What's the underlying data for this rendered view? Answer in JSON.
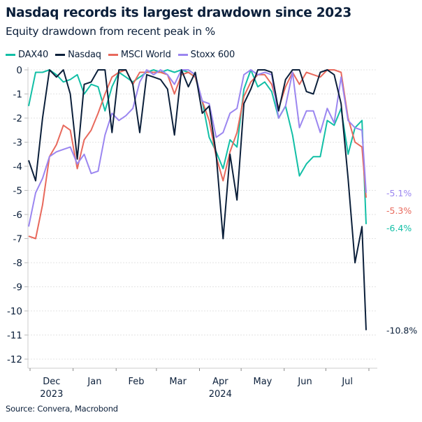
{
  "title": "Nasdaq records its largest drawdown since 2023",
  "subtitle": "Equity drawdown from recent peak in %",
  "source": "Source: Convera, Macrobond",
  "chart_data": {
    "type": "line",
    "title": "Nasdaq records its largest drawdown since 2023",
    "subtitle": "Equity drawdown from recent peak in %",
    "xlabel": "",
    "ylabel": "",
    "ylim": [
      -12,
      0
    ],
    "yticks": [
      0,
      -1,
      -2,
      -3,
      -4,
      -5,
      -6,
      -7,
      -8,
      -9,
      -10,
      -11,
      -12
    ],
    "grid": true,
    "legend_position": "top-left",
    "x_month_ticks": [
      "2023-12-01",
      "2024-01-01",
      "2024-02-01",
      "2024-03-01",
      "2024-04-01",
      "2024-05-01",
      "2024-06-01",
      "2024-07-01",
      "2024-08-01"
    ],
    "x_month_labels": [
      "Dec",
      "Jan",
      "Feb",
      "Mar",
      "Apr",
      "May",
      "Jun",
      "Jul"
    ],
    "x_year_labels": [
      {
        "label": "2023",
        "month": "Dec"
      },
      {
        "label": "2024",
        "month": "Apr"
      }
    ],
    "x": [
      "2023-11-30",
      "2023-12-05",
      "2023-12-10",
      "2023-12-15",
      "2023-12-20",
      "2023-12-25",
      "2023-12-30",
      "2024-01-04",
      "2024-01-09",
      "2024-01-14",
      "2024-01-19",
      "2024-01-24",
      "2024-01-29",
      "2024-02-03",
      "2024-02-08",
      "2024-02-13",
      "2024-02-18",
      "2024-02-23",
      "2024-02-28",
      "2024-03-04",
      "2024-03-09",
      "2024-03-14",
      "2024-03-19",
      "2024-03-24",
      "2024-03-29",
      "2024-04-03",
      "2024-04-08",
      "2024-04-13",
      "2024-04-18",
      "2024-04-23",
      "2024-04-28",
      "2024-05-03",
      "2024-05-08",
      "2024-05-13",
      "2024-05-18",
      "2024-05-23",
      "2024-05-28",
      "2024-06-02",
      "2024-06-07",
      "2024-06-12",
      "2024-06-17",
      "2024-06-22",
      "2024-06-27",
      "2024-07-02",
      "2024-07-07",
      "2024-07-12",
      "2024-07-17",
      "2024-07-22",
      "2024-07-27",
      "2024-07-30"
    ],
    "series": [
      {
        "name": "DAX40",
        "color": "#12bfa6",
        "end_label": "-6.4%",
        "values": [
          -1.5,
          -0.1,
          -0.1,
          0,
          -0.2,
          -0.5,
          -0.4,
          -0.2,
          -1.0,
          -0.6,
          -0.7,
          -1.7,
          -0.7,
          -0.1,
          -0.3,
          -0.5,
          -0.3,
          -0.1,
          0,
          -0.1,
          0,
          -0.1,
          0,
          -0.1,
          -0.3,
          -1.3,
          -2.8,
          -3.4,
          -4.1,
          -2.9,
          -3.2,
          -0.8,
          0,
          -0.7,
          -0.5,
          -0.9,
          -2.0,
          -1.5,
          -2.7,
          -4.4,
          -3.9,
          -3.6,
          -3.6,
          -2.1,
          -2.3,
          -1.6,
          -3.5,
          -2.4,
          -2.1,
          -6.4
        ]
      },
      {
        "name": "Nasdaq",
        "color": "#0b1f3a",
        "end_label": "-10.8%",
        "values": [
          -3.75,
          -4.6,
          -2.0,
          0,
          -0.3,
          0,
          -1.0,
          -3.7,
          -0.6,
          -0.5,
          0,
          0,
          -2.6,
          0,
          0,
          -0.6,
          -2.6,
          -0.2,
          -0.3,
          -0.4,
          -0.8,
          -2.7,
          0,
          -0.7,
          -0.1,
          -1.8,
          -1.5,
          -3.5,
          -7.0,
          -3.5,
          -5.4,
          -1.4,
          -0.8,
          0,
          0,
          -0.1,
          -1.7,
          -0.4,
          0,
          0,
          -0.9,
          -1.0,
          -0.1,
          0,
          -0.2,
          -1.4,
          -4.5,
          -8.0,
          -6.5,
          -10.8
        ]
      },
      {
        "name": "MSCI World",
        "color": "#e8695c",
        "end_label": "-5.3%",
        "values": [
          -6.9,
          -7.0,
          -5.6,
          -3.6,
          -3.1,
          -2.3,
          -2.5,
          -4.1,
          -2.9,
          -2.5,
          -1.8,
          -1.0,
          -0.3,
          -0.1,
          0,
          -0.6,
          -0.1,
          -0.1,
          -0.1,
          -0.1,
          -0.2,
          -1.0,
          -0.2,
          -0.1,
          -0.3,
          -1.3,
          -2.1,
          -3.6,
          -4.6,
          -3.4,
          -2.6,
          -1.1,
          -0.5,
          -0.2,
          -0.2,
          -0.6,
          -1.6,
          -0.7,
          -0.1,
          -0.6,
          -0.1,
          -0.2,
          -0.3,
          0,
          0,
          -0.1,
          -2.0,
          -3.0,
          -3.2,
          -5.3
        ]
      },
      {
        "name": "Stoxx 600",
        "color": "#9b86f0",
        "end_label": "-5.1%",
        "values": [
          -6.5,
          -5.1,
          -4.5,
          -3.6,
          -3.4,
          -3.3,
          -3.2,
          -3.9,
          -3.5,
          -4.3,
          -4.2,
          -2.7,
          -1.8,
          -2.1,
          -1.9,
          -1.6,
          -0.5,
          0,
          -0.2,
          0,
          -0.2,
          -0.6,
          0,
          0,
          -0.2,
          -1.3,
          -1.4,
          -2.8,
          -2.6,
          -1.8,
          -1.6,
          -0.2,
          0,
          -0.2,
          -0.1,
          -0.2,
          -2.0,
          -1.5,
          -0.1,
          -2.4,
          -1.7,
          -1.7,
          -2.6,
          -1.6,
          -2.2,
          -0.3,
          -2.1,
          -2.4,
          -2.5,
          -5.1
        ]
      }
    ]
  }
}
